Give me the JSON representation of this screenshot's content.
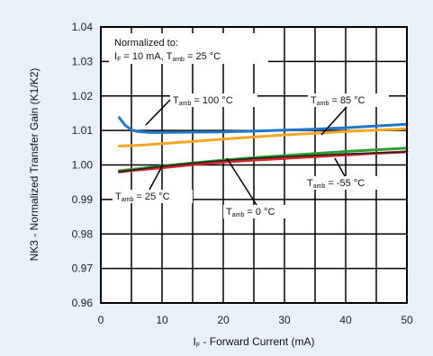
{
  "chart_data": {
    "type": "line",
    "xlabel_main": "I",
    "xlabel_sub": "F",
    "xlabel_rest": " - Forward Current (mA)",
    "ylabel": "NK3 - Normalized Transfer Gain (K1/K2)",
    "xlim": [
      0,
      50
    ],
    "ylim": [
      0.96,
      1.04
    ],
    "grid": true,
    "x_ticks": [
      0,
      10,
      20,
      30,
      40,
      50
    ],
    "y_ticks": [
      0.96,
      0.97,
      0.98,
      0.99,
      1.0,
      1.01,
      1.02,
      1.03,
      1.04
    ],
    "x_tick_labels": [
      "0",
      "10",
      "20",
      "30",
      "40",
      "50"
    ],
    "y_tick_labels": [
      "0.96",
      "0.97",
      "0.98",
      "0.99",
      "1.00",
      "1.01",
      "1.02",
      "1.03",
      "1.04"
    ],
    "series": [
      {
        "name_main": "T",
        "name_sub": "amb",
        "name_rest": " = 100 °C",
        "color": "#1f78c8",
        "x": [
          3,
          4,
          5,
          6,
          8,
          10,
          15,
          20,
          25,
          30,
          35,
          40,
          45,
          50
        ],
        "y": [
          1.0137,
          1.0115,
          1.0102,
          1.0097,
          1.0094,
          1.0094,
          1.0095,
          1.0096,
          1.0098,
          1.0101,
          1.0104,
          1.0108,
          1.0113,
          1.0118
        ]
      },
      {
        "name_main": "T",
        "name_sub": "amb",
        "name_rest": " = 85 °C",
        "color": "#f5a623",
        "x": [
          3,
          5,
          8,
          10,
          15,
          20,
          25,
          30,
          35,
          40,
          45,
          50
        ],
        "y": [
          1.0055,
          1.0056,
          1.0059,
          1.0062,
          1.0068,
          1.0075,
          1.0081,
          1.0087,
          1.0092,
          1.0097,
          1.0101,
          1.0105
        ]
      },
      {
        "name_main": "T",
        "name_sub": "amb",
        "name_rest": " = 25 °C",
        "color": "#2ca02c",
        "x": [
          3,
          5,
          10,
          15,
          20,
          25,
          30,
          35,
          40,
          45,
          50
        ],
        "y": [
          0.9983,
          0.9987,
          0.9997,
          1.0006,
          1.0014,
          1.0021,
          1.0027,
          1.0033,
          1.0039,
          1.0044,
          1.0049
        ]
      },
      {
        "name_main": "T",
        "name_sub": "amb",
        "name_rest": " = 0 °C",
        "color": "#d62728",
        "x": [
          3,
          5,
          10,
          15,
          20,
          25,
          30,
          35,
          40,
          45,
          50
        ],
        "y": [
          0.998,
          0.9984,
          0.9992,
          1.0001,
          1.0008,
          1.0014,
          1.0019,
          1.0024,
          1.0029,
          1.0034,
          1.0038
        ]
      },
      {
        "name_main": "T",
        "name_sub": "amb",
        "name_rest": " = -55 °C",
        "color": "#222222",
        "x": [
          3,
          5,
          10,
          15,
          20,
          25,
          30,
          35,
          40,
          45,
          50
        ],
        "y": [
          0.998,
          0.9985,
          0.9996,
          1.0005,
          1.0013,
          1.0019,
          1.0024,
          1.0028,
          1.0032,
          1.0035,
          1.0038
        ]
      }
    ],
    "note_line1": "Normalized to:",
    "note_line2_main": "I",
    "note_line2_sub": "F",
    "note_line2_mid": " = 10 mA, T",
    "note_line2_sub2": "amb",
    "note_line2_rest": " = 25 °C"
  }
}
